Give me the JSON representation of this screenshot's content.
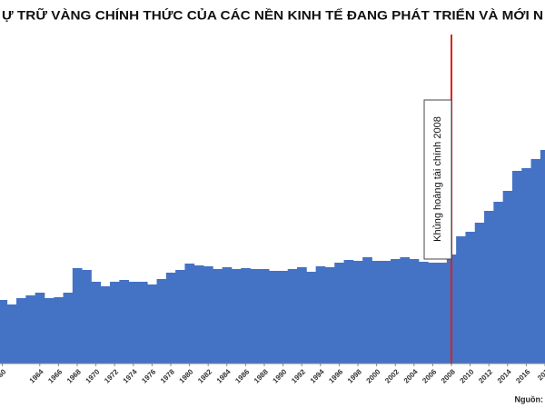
{
  "chart_data": {
    "type": "bar",
    "title": "Ự TRỮ VÀNG CHÍNH THỨC CỦA CÁC NỀN KINH TẾ ĐANG PHÁT TRIỂN VÀ MỚI N",
    "x": [
      1960,
      1961,
      1962,
      1963,
      1964,
      1965,
      1966,
      1967,
      1968,
      1969,
      1970,
      1971,
      1972,
      1973,
      1974,
      1975,
      1976,
      1977,
      1978,
      1979,
      1980,
      1981,
      1982,
      1983,
      1984,
      1985,
      1986,
      1987,
      1988,
      1989,
      1990,
      1991,
      1992,
      1993,
      1994,
      1995,
      1996,
      1997,
      1998,
      1999,
      2000,
      2001,
      2002,
      2003,
      2004,
      2005,
      2006,
      2007,
      2008,
      2009,
      2010,
      2011,
      2012,
      2013,
      2014,
      2015,
      2016,
      2017,
      2018
    ],
    "values": [
      70,
      65,
      72,
      75,
      78,
      72,
      73,
      78,
      105,
      103,
      90,
      85,
      90,
      92,
      90,
      90,
      87,
      93,
      100,
      103,
      110,
      108,
      107,
      104,
      106,
      104,
      105,
      104,
      104,
      102,
      102,
      104,
      106,
      101,
      107,
      106,
      111,
      114,
      113,
      117,
      113,
      113,
      115,
      117,
      115,
      112,
      111,
      111,
      120,
      140,
      145,
      155,
      168,
      178,
      190,
      212,
      215,
      225,
      235
    ],
    "color": "#4472c4",
    "xlim": [
      1959.75,
      2018
    ],
    "ylim": [
      0,
      360
    ],
    "xticks": [
      {
        "value": 1960,
        "label": "60"
      },
      1964,
      1966,
      1968,
      1970,
      1972,
      1974,
      1976,
      1978,
      1980,
      1982,
      1984,
      1986,
      1988,
      1990,
      1992,
      1994,
      1996,
      1998,
      2000,
      2002,
      2004,
      2006,
      2008,
      2010,
      2012,
      2014,
      2016,
      {
        "value": 2018,
        "label": "201"
      }
    ],
    "annotation": {
      "x": 2008,
      "text": "Khủng hoảng tài chính 2008",
      "color": "#e02020"
    },
    "source": "Nguồn:"
  }
}
